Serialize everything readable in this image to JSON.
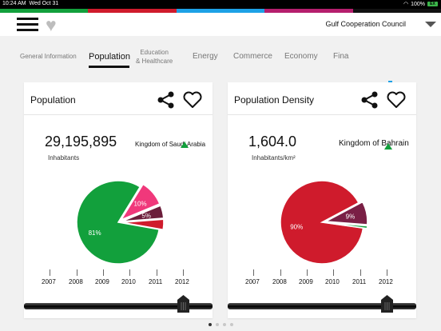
{
  "status_bar": {
    "time": "10:24 AM",
    "date": "Wed Oct 31",
    "wifi_icon": "wifi-icon",
    "battery_percent": "100%",
    "battery_badge": "EX"
  },
  "color_strip": [
    "#12a03c",
    "#cf1b2c",
    "#1da1e6",
    "#b51f6d",
    "#111111"
  ],
  "header": {
    "menu_icon": "hamburger-menu-icon",
    "favorites_icon": "heart-icon",
    "region": "Gulf Cooperation Council",
    "region_caret_icon": "caret-down-icon"
  },
  "tabs": {
    "items": [
      {
        "label": "General Information",
        "active": false
      },
      {
        "label": "Population",
        "active": true
      },
      {
        "label": "Education\n& Healthcare",
        "active": false
      },
      {
        "label": "Energy",
        "active": false
      },
      {
        "label": "Commerce",
        "active": false
      },
      {
        "label": "Economy",
        "active": false
      },
      {
        "label": "Fina",
        "active": false
      }
    ],
    "chart_icon": "bar-chart-icon"
  },
  "cards": [
    {
      "title": "Population",
      "value": "29,195,895",
      "unit": "Inhabitants",
      "country": "Kingdom of Saudi Arabia",
      "share_icon": "share-icon",
      "favorite_icon": "heart-outline-icon",
      "slices": [
        {
          "label": "81%",
          "percent": 81,
          "color": "#12a03c"
        },
        {
          "label": "10%",
          "percent": 10,
          "color": "#f0387b"
        },
        {
          "label": "5%",
          "percent": 5,
          "color": "#6b1d3a"
        },
        {
          "label": "",
          "percent": 4,
          "color": "#cf1b2c"
        }
      ],
      "years": [
        "2007",
        "2008",
        "2009",
        "2010",
        "2011",
        "2012"
      ],
      "selected_year": "2012"
    },
    {
      "title": "Population Density",
      "value": "1,604.0",
      "unit": "Inhabitants/km²",
      "country": "Kingdom of Bahrain",
      "share_icon": "share-icon",
      "favorite_icon": "heart-outline-icon",
      "slices": [
        {
          "label": "90%",
          "percent": 90,
          "color": "#cf1b2c"
        },
        {
          "label": "9%",
          "percent": 9,
          "color": "#7a1f45"
        },
        {
          "label": "",
          "percent": 1,
          "color": "#12a03c"
        }
      ],
      "years": [
        "2007",
        "2008",
        "2009",
        "2010",
        "2011",
        "2012"
      ],
      "selected_year": "2012"
    }
  ],
  "pager": {
    "count": 4,
    "current": 1
  }
}
